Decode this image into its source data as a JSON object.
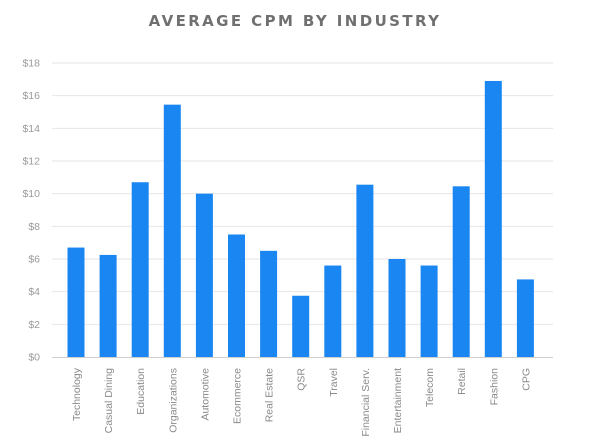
{
  "chart_data": {
    "type": "bar",
    "title": "AVERAGE CPM BY INDUSTRY",
    "xlabel": "",
    "ylabel": "",
    "categories": [
      "Technology",
      "Casual Dining",
      "Education",
      "Organizations",
      "Automotive",
      "Ecommerce",
      "Real Estate",
      "QSR",
      "Travel",
      "Financial Serv.",
      "Entertainment",
      "Telecom",
      "Retail",
      "Fashion",
      "CPG"
    ],
    "values": [
      6.7,
      6.25,
      10.7,
      15.45,
      10.0,
      7.5,
      6.5,
      3.75,
      5.6,
      10.55,
      6.0,
      5.6,
      10.45,
      16.9,
      4.75
    ],
    "ylim": [
      0,
      18
    ],
    "y_ticks": [
      0,
      2,
      4,
      6,
      8,
      10,
      12,
      14,
      16,
      18
    ],
    "y_tick_labels": [
      "$0",
      "$2",
      "$4",
      "$6",
      "$8",
      "$10",
      "$12",
      "$14",
      "$16",
      "$18"
    ],
    "grid": true,
    "legend": "none",
    "bar_color": "#1a86f2",
    "grid_color": "#e6e6e6",
    "axis_color": "#cfcfcf"
  }
}
